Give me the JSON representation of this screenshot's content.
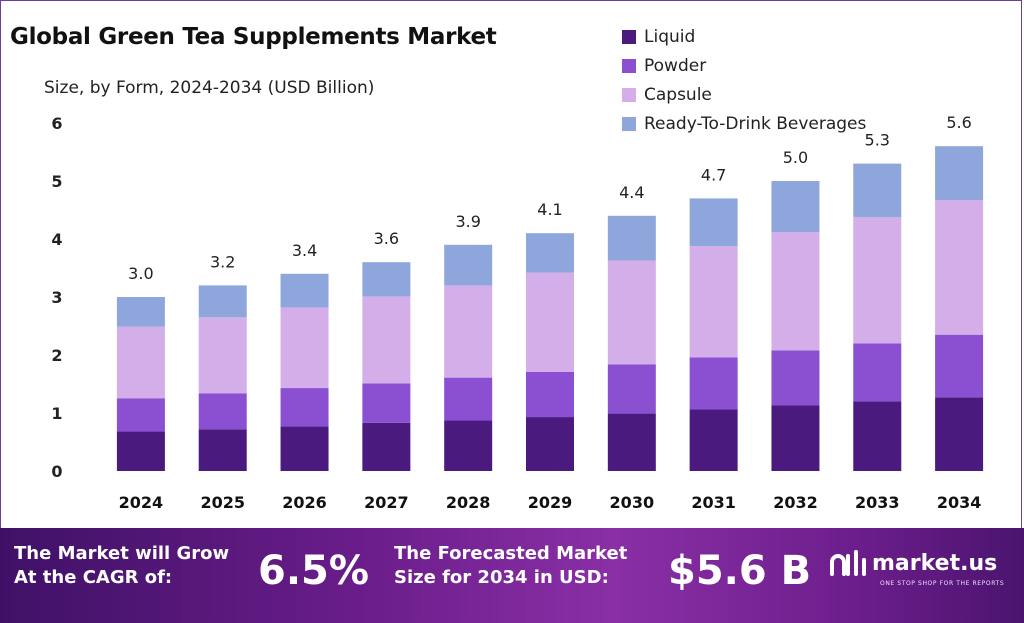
{
  "header": {
    "title": "Global Green Tea Supplements Market",
    "subtitle": "Size, by Form, 2024-2034 (USD Billion)"
  },
  "legend": [
    {
      "label": "Liquid",
      "color": "#4b1a7f"
    },
    {
      "label": "Powder",
      "color": "#8b4fd1"
    },
    {
      "label": "Capsule",
      "color": "#d3aee9"
    },
    {
      "label": "Ready-To-Drink Beverages",
      "color": "#8ea6dc"
    }
  ],
  "chart_data": {
    "type": "bar",
    "stacked": true,
    "categories": [
      "2024",
      "2025",
      "2026",
      "2027",
      "2028",
      "2029",
      "2030",
      "2031",
      "2032",
      "2033",
      "2034"
    ],
    "series": [
      {
        "name": "Liquid",
        "color": "#4b1a7f",
        "values": [
          0.68,
          0.72,
          0.77,
          0.83,
          0.87,
          0.93,
          0.99,
          1.06,
          1.13,
          1.2,
          1.27
        ]
      },
      {
        "name": "Powder",
        "color": "#8b4fd1",
        "values": [
          0.57,
          0.62,
          0.66,
          0.68,
          0.74,
          0.78,
          0.85,
          0.9,
          0.95,
          1.0,
          1.08
        ]
      },
      {
        "name": "Capsule",
        "color": "#d3aee9",
        "values": [
          1.24,
          1.31,
          1.39,
          1.5,
          1.59,
          1.71,
          1.79,
          1.92,
          2.04,
          2.18,
          2.32
        ]
      },
      {
        "name": "Ready-To-Drink Beverages",
        "color": "#8ea6dc",
        "values": [
          0.51,
          0.55,
          0.58,
          0.59,
          0.7,
          0.68,
          0.77,
          0.82,
          0.88,
          0.92,
          0.93
        ]
      }
    ],
    "totals": [
      "3.0",
      "3.2",
      "3.4",
      "3.6",
      "3.9",
      "4.1",
      "4.4",
      "4.7",
      "5.0",
      "5.3",
      "5.6"
    ],
    "yticks": [
      "0",
      "1",
      "2",
      "3",
      "4",
      "5",
      "6"
    ],
    "ylim": [
      0,
      6
    ],
    "grid": false,
    "legend_position": "top-right"
  },
  "footer": {
    "cagr_label": "The Market will Grow At the CAGR of:",
    "cagr_value": "6.5%",
    "forecast_label": "The Forecasted Market Size for 2034 in USD:",
    "forecast_value": "$5.6 B",
    "brand_name": "market.us",
    "brand_tagline": "ONE STOP SHOP FOR THE REPORTS"
  }
}
